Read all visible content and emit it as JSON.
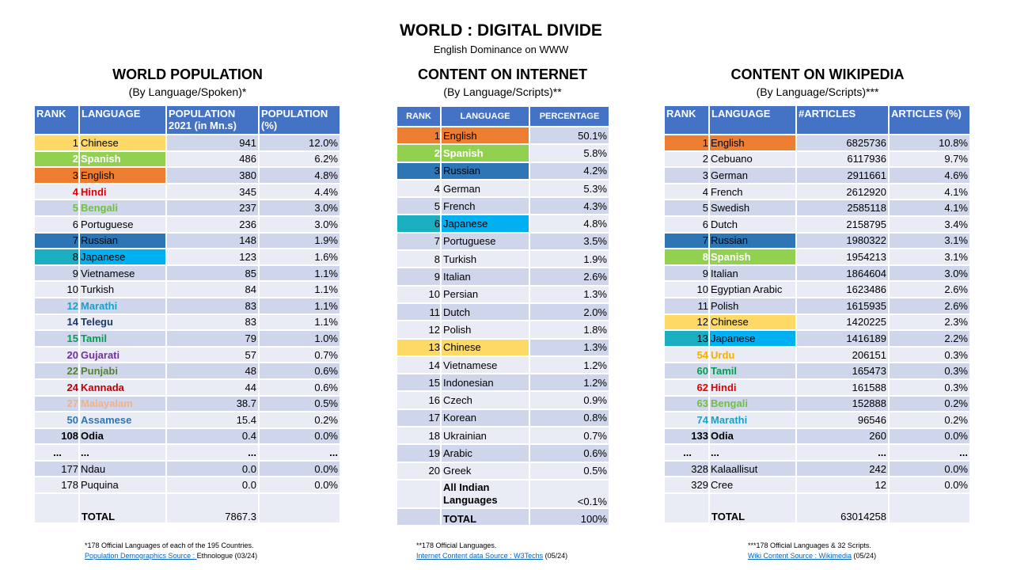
{
  "title": "WORLD : DIGITAL DIVIDE",
  "subtitle": "English Dominance on WWW",
  "colors": {
    "header": "#4472C4",
    "row_dark": "#CFD5EA",
    "row_light": "#E9EBF5",
    "yellow": "#FFD966",
    "green": "#92D050",
    "orange": "#ED7D31",
    "blue": "#2E75B6",
    "teal": "#1BADC0",
    "cyan": "#00B0F0"
  },
  "population": {
    "title": "WORLD POPULATION",
    "subtitle": "(By Language/Spoken)*",
    "headers": [
      "RANK",
      "LANGUAGE",
      "POPULATION 2021 (in Mn.s)",
      "POPULATION (%)"
    ],
    "rows": [
      {
        "rank": "1",
        "lang": "Chinese",
        "value": "941",
        "pct": "12.0%",
        "hl": "#FFD966",
        "hl2": "#FFD966"
      },
      {
        "rank": "2",
        "lang": "Spanish",
        "value": "486",
        "pct": "6.2%",
        "hl": "#92D050",
        "hl2": "#92D050",
        "tc": "#ffffff",
        "b": true
      },
      {
        "rank": "3",
        "lang": "English",
        "value": "380",
        "pct": "4.8%",
        "hl": "#ED7D31",
        "hl2": "#ED7D31"
      },
      {
        "rank": "4",
        "lang": "Hindi",
        "value": "345",
        "pct": "4.4%",
        "tc": "#E00000",
        "b": true
      },
      {
        "rank": "5",
        "lang": "Bengali",
        "value": "237",
        "pct": "3.0%",
        "tc": "#70C040",
        "b": true
      },
      {
        "rank": "6",
        "lang": "Portuguese",
        "value": "236",
        "pct": "3.0%"
      },
      {
        "rank": "7",
        "lang": "Russian",
        "value": "148",
        "pct": "1.9%",
        "hl": "#2E75B6",
        "hl2": "#2E75B6"
      },
      {
        "rank": "8",
        "lang": "Japanese",
        "value": "123",
        "pct": "1.6%",
        "hl": "#1BADC0",
        "hl2": "#00B0F0"
      },
      {
        "rank": "9",
        "lang": "Vietnamese",
        "value": "85",
        "pct": "1.1%"
      },
      {
        "rank": "10",
        "lang": "Turkish",
        "value": "84",
        "pct": "1.1%"
      },
      {
        "rank": "12",
        "lang": "Marathi",
        "value": "83",
        "pct": "1.1%",
        "tc": "#1BA1C8",
        "b": true
      },
      {
        "rank": "14",
        "lang": "Telegu",
        "value": "83",
        "pct": "1.1%",
        "tc": "#1F3864",
        "b": true
      },
      {
        "rank": "15",
        "lang": "Tamil",
        "value": "79",
        "pct": "1.0%",
        "tc": "#00A050",
        "b": true
      },
      {
        "rank": "20",
        "lang": "Gujarati",
        "value": "57",
        "pct": "0.7%",
        "tc": "#7030A0",
        "b": true
      },
      {
        "rank": "22",
        "lang": "Punjabi",
        "value": "48",
        "pct": "0.6%",
        "tc": "#548235",
        "b": true
      },
      {
        "rank": "24",
        "lang": "Kannada",
        "value": "44",
        "pct": "0.6%",
        "tc": "#C00000",
        "b": true
      },
      {
        "rank": "27",
        "lang": "Malayalam",
        "value": "38.7",
        "pct": "0.5%",
        "tc": "#F4B183",
        "b": true
      },
      {
        "rank": "50",
        "lang": "Assamese",
        "value": "15.4",
        "pct": "0.2%",
        "tc": "#2E75B6",
        "b": true
      },
      {
        "rank": "108",
        "lang": "Odia",
        "value": "0.4",
        "pct": "0.0%",
        "b": true
      },
      {
        "rank": "...",
        "lang": "...",
        "value": "...",
        "pct": "...",
        "dots": true
      },
      {
        "rank": "177",
        "lang": "Ndau",
        "value": "0.0",
        "pct": "0.0%"
      },
      {
        "rank": "178",
        "lang": "Puquina",
        "value": "0.0",
        "pct": "0.0%"
      }
    ],
    "total_label": "TOTAL",
    "total_value": "7867.3",
    "footnote": "*178 Official Languages of each of the 195 Countries.",
    "source_link": "Population Demographics Source : ",
    "source_rest": "Ethnologue (03/24)"
  },
  "internet": {
    "title": "CONTENT ON INTERNET",
    "subtitle": "(By Language/Scripts)**",
    "headers": [
      "RANK",
      "LANGUAGE",
      "PERCENTAGE"
    ],
    "rows": [
      {
        "rank": "1",
        "lang": "English",
        "pct": "50.1%",
        "hl": "#ED7D31"
      },
      {
        "rank": "2",
        "lang": "Spanish",
        "pct": "5.8%",
        "hl": "#92D050",
        "tc": "#ffffff",
        "b": true
      },
      {
        "rank": "3",
        "lang": "Russian",
        "pct": "4.2%",
        "hl": "#2E75B6"
      },
      {
        "rank": "4",
        "lang": "German",
        "pct": "5.3%"
      },
      {
        "rank": "5",
        "lang": "French",
        "pct": "4.3%"
      },
      {
        "rank": "6",
        "lang": "Japanese",
        "pct": "4.8%",
        "hl": "#1BADC0",
        "hl2": "#00B0F0"
      },
      {
        "rank": "7",
        "lang": "Portuguese",
        "pct": "3.5%"
      },
      {
        "rank": "8",
        "lang": "Turkish",
        "pct": "1.9%"
      },
      {
        "rank": "9",
        "lang": "Italian",
        "pct": "2.6%"
      },
      {
        "rank": "10",
        "lang": "Persian",
        "pct": "1.3%"
      },
      {
        "rank": "11",
        "lang": "Dutch",
        "pct": "2.0%"
      },
      {
        "rank": "12",
        "lang": "Polish",
        "pct": "1.8%"
      },
      {
        "rank": "13",
        "lang": "Chinese",
        "pct": "1.3%",
        "hl": "#FFD966"
      },
      {
        "rank": "14",
        "lang": "Vietnamese",
        "pct": "1.2%"
      },
      {
        "rank": "15",
        "lang": "Indonesian",
        "pct": "1.2%"
      },
      {
        "rank": "16",
        "lang": "Czech",
        "pct": "0.9%"
      },
      {
        "rank": "17",
        "lang": "Korean",
        "pct": "0.8%"
      },
      {
        "rank": "18",
        "lang": "Ukrainian",
        "pct": "0.7%"
      },
      {
        "rank": "19",
        "lang": "Arabic",
        "pct": "0.6%"
      },
      {
        "rank": "20",
        "lang": "Greek",
        "pct": "0.5%"
      }
    ],
    "indian_label": "All Indian Languages",
    "indian_value": "<0.1%",
    "total_label": "TOTAL",
    "total_value": "100%",
    "footnote": "**178 Official Languages.",
    "source_link": "Internet Content data Source : W3Techs",
    "source_rest": " (05/24)"
  },
  "wikipedia": {
    "title": "CONTENT ON WIKIPEDIA",
    "subtitle": "(By Language/Scripts)***",
    "headers": [
      "RANK",
      "LANGUAGE",
      "#ARTICLES",
      "ARTICLES (%)"
    ],
    "rows": [
      {
        "rank": "1",
        "lang": "English",
        "value": "6825736",
        "pct": "10.8%",
        "hl": "#ED7D31",
        "hl2": "#ED7D31"
      },
      {
        "rank": "2",
        "lang": "Cebuano",
        "value": "6117936",
        "pct": "9.7%"
      },
      {
        "rank": "3",
        "lang": "German",
        "value": "2911661",
        "pct": "4.6%"
      },
      {
        "rank": "4",
        "lang": "French",
        "value": "2612920",
        "pct": "4.1%"
      },
      {
        "rank": "5",
        "lang": "Swedish",
        "value": "2585118",
        "pct": "4.1%"
      },
      {
        "rank": "6",
        "lang": "Dutch",
        "value": "2158795",
        "pct": "3.4%"
      },
      {
        "rank": "7",
        "lang": "Russian",
        "value": "1980322",
        "pct": "3.1%",
        "hl": "#2E75B6",
        "hl2": "#2E75B6"
      },
      {
        "rank": "8",
        "lang": "Spanish",
        "value": "1954213",
        "pct": "3.1%",
        "hl": "#92D050",
        "hl2": "#92D050",
        "tc": "#ffffff",
        "b": true
      },
      {
        "rank": "9",
        "lang": "Italian",
        "value": "1864604",
        "pct": "3.0%"
      },
      {
        "rank": "10",
        "lang": "Egyptian Arabic",
        "value": "1623486",
        "pct": "2.6%"
      },
      {
        "rank": "11",
        "lang": "Polish",
        "value": "1615935",
        "pct": "2.6%"
      },
      {
        "rank": "12",
        "lang": "Chinese",
        "value": "1420225",
        "pct": "2.3%",
        "hl": "#FFD966",
        "hl2": "#FFD966"
      },
      {
        "rank": "13",
        "lang": "Japanese",
        "value": "1416189",
        "pct": "2.2%",
        "hl": "#1BADC0",
        "hl2": "#00B0F0"
      },
      {
        "rank": "54",
        "lang": "Urdu",
        "value": "206151",
        "pct": "0.3%",
        "tc": "#F4B000",
        "b": true
      },
      {
        "rank": "60",
        "lang": "Tamil",
        "value": "165473",
        "pct": "0.3%",
        "tc": "#00A050",
        "b": true
      },
      {
        "rank": "62",
        "lang": "Hindi",
        "value": "161588",
        "pct": "0.3%",
        "tc": "#E00000",
        "b": true
      },
      {
        "rank": "63",
        "lang": "Bengali",
        "value": "152888",
        "pct": "0.2%",
        "tc": "#70C040",
        "b": true
      },
      {
        "rank": "74",
        "lang": "Marathi",
        "value": "96546",
        "pct": "0.2%",
        "tc": "#1BA1C8",
        "b": true
      },
      {
        "rank": "133",
        "lang": "Odia",
        "value": "260",
        "pct": "0.0%",
        "b": true
      },
      {
        "rank": "...",
        "lang": "...",
        "value": "...",
        "pct": "...",
        "dots": true
      },
      {
        "rank": "328",
        "lang": "Kalaallisut",
        "value": "242",
        "pct": "0.0%"
      },
      {
        "rank": "329",
        "lang": "Cree",
        "value": "12",
        "pct": "0.0%"
      }
    ],
    "total_label": "TOTAL",
    "total_value": "63014258",
    "footnote": "***178 Official Languages & 32 Scripts.",
    "source_link": "Wiki Content Source : Wikimedia",
    "source_rest": " (05/24)"
  }
}
